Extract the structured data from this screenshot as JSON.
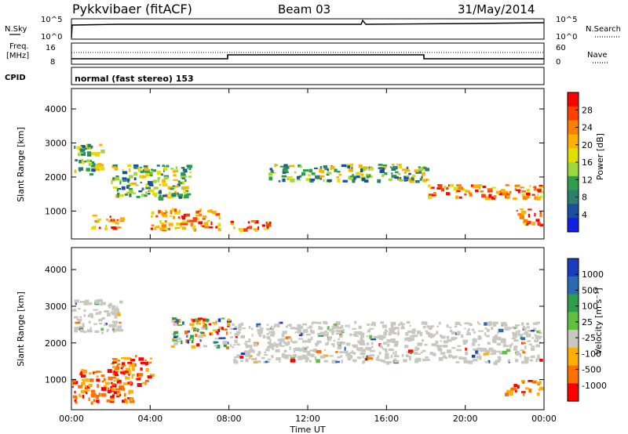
{
  "header": {
    "station": "Pykkvibaer (fitACF)",
    "beam": "Beam 03",
    "date": "31/May/2014"
  },
  "nsky_panel": {
    "left_label": "N.Sky",
    "right_label": "N.Search",
    "ticks": [
      "10^5",
      "10^0"
    ],
    "right_ticks": [
      "10^5",
      "10^0"
    ]
  },
  "freq_panel": {
    "left_label_line1": "Freq.",
    "left_label_line2": "[MHz]",
    "left_ticks": [
      "16",
      "8"
    ],
    "right_ticks": [
      "60",
      "0"
    ],
    "right_label": "Nave",
    "cpid_label": "CPID",
    "cpid_text": "normal (fast stereo) 153"
  },
  "chart_data": [
    {
      "type": "heatmap",
      "name": "power",
      "ylabel": "Slant Range [km]",
      "yticks": [
        "4000",
        "3000",
        "2000",
        "1000"
      ],
      "ylim": [
        180,
        4600
      ],
      "colorbar": {
        "label": "Power [dB]",
        "ticks": [
          "28",
          "24",
          "20",
          "16",
          "12",
          "8",
          "4"
        ],
        "colors": [
          "#ff0000",
          "#ff4000",
          "#ff8000",
          "#ffb000",
          "#e0e000",
          "#9ed83c",
          "#2e9e4e",
          "#2e7e6e",
          "#1a4e9e",
          "#1020e0"
        ]
      },
      "bands": [
        {
          "t0": 0.0,
          "t1": 1.5,
          "r0": 2100,
          "r1": 3000,
          "level": "mid"
        },
        {
          "t0": 1.0,
          "t1": 2.5,
          "r0": 500,
          "r1": 900,
          "level": "high"
        },
        {
          "t0": 2.0,
          "t1": 6.0,
          "r0": 1400,
          "r1": 2400,
          "level": "mid"
        },
        {
          "t0": 4.0,
          "t1": 7.5,
          "r0": 500,
          "r1": 1100,
          "level": "high"
        },
        {
          "t0": 8.0,
          "t1": 10.0,
          "r0": 450,
          "r1": 750,
          "level": "high"
        },
        {
          "t0": 10.0,
          "t1": 18.0,
          "r0": 1900,
          "r1": 2400,
          "level": "mid"
        },
        {
          "t0": 18.0,
          "t1": 24.0,
          "r0": 1400,
          "r1": 1800,
          "level": "high"
        },
        {
          "t0": 22.5,
          "t1": 24.0,
          "r0": 600,
          "r1": 1100,
          "level": "high"
        }
      ]
    },
    {
      "type": "heatmap",
      "name": "velocity",
      "xlabel": "Time UT",
      "ylabel": "Slant Range [km]",
      "xticks": [
        "00:00",
        "04:00",
        "08:00",
        "12:00",
        "16:00",
        "20:00",
        "00:00"
      ],
      "yticks": [
        "4000",
        "3000",
        "2000",
        "1000"
      ],
      "ylim": [
        180,
        4600
      ],
      "colorbar": {
        "label": "Velocity [m s⁻¹]",
        "ticks": [
          "1000",
          "500",
          "100",
          "25",
          "-25",
          "-100",
          "-500",
          "-1000"
        ],
        "colors": [
          "#1a3cc0",
          "#2a6ab0",
          "#2e9e4e",
          "#60c040",
          "#c8c8c0",
          "#ffb000",
          "#ff7000",
          "#ff0000"
        ]
      },
      "bands": [
        {
          "t0": 0.0,
          "t1": 2.5,
          "r0": 2300,
          "r1": 3200,
          "level": "ground"
        },
        {
          "t0": 0.0,
          "t1": 3.0,
          "r0": 400,
          "r1": 1300,
          "level": "negative"
        },
        {
          "t0": 2.0,
          "t1": 4.0,
          "r0": 900,
          "r1": 1700,
          "level": "negative"
        },
        {
          "t0": 5.0,
          "t1": 8.0,
          "r0": 1900,
          "r1": 2700,
          "level": "mixed"
        },
        {
          "t0": 8.0,
          "t1": 24.0,
          "r0": 1500,
          "r1": 2600,
          "level": "ground"
        },
        {
          "t0": 22.0,
          "t1": 24.0,
          "r0": 600,
          "r1": 1000,
          "level": "negative"
        }
      ]
    }
  ]
}
